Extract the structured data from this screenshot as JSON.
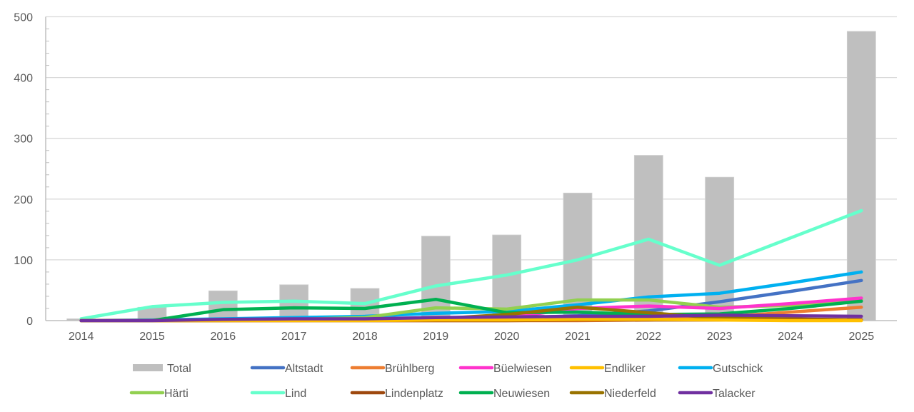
{
  "chart_data": {
    "type": "bar+line",
    "title": "",
    "xlabel": "",
    "ylabel": "",
    "ylim": [
      0,
      500
    ],
    "yticks": [
      0,
      100,
      200,
      300,
      400,
      500
    ],
    "y_minor_step": 20,
    "grid": true,
    "legend_position": "bottom",
    "categories": [
      "2014",
      "2015",
      "2016",
      "2017",
      "2018",
      "2019",
      "2020",
      "2021",
      "2022",
      "2023",
      "2024",
      "2025"
    ],
    "bar_series": {
      "name": "Total",
      "color": "#bfbfbf",
      "values": [
        3,
        22,
        49,
        59,
        53,
        139,
        141,
        210,
        272,
        236,
        null,
        476
      ]
    },
    "series": [
      {
        "name": "Altstadt",
        "color": "#4472c4",
        "values": [
          0,
          0,
          1,
          1,
          2,
          3,
          4,
          8,
          16,
          31,
          48,
          66
        ]
      },
      {
        "name": "Brühlberg",
        "color": "#ed7d31",
        "values": [
          0,
          0,
          0,
          0,
          0,
          0,
          0,
          0,
          1,
          6,
          14,
          22
        ]
      },
      {
        "name": "Büelwiesen",
        "color": "#ff33cc",
        "values": [
          0,
          0,
          0,
          0,
          1,
          2,
          5,
          20,
          24,
          20,
          28,
          37
        ]
      },
      {
        "name": "Endliker",
        "color": "#ffc000",
        "values": [
          0,
          0,
          0,
          0,
          0,
          1,
          1,
          2,
          2,
          1,
          0,
          0
        ]
      },
      {
        "name": "Gutschick",
        "color": "#00b0f0",
        "values": [
          0,
          1,
          3,
          5,
          7,
          12,
          15,
          26,
          39,
          45,
          62,
          80
        ]
      },
      {
        "name": "Härti",
        "color": "#92d050",
        "values": [
          0,
          0,
          1,
          2,
          5,
          21,
          19,
          34,
          34,
          22,
          25,
          35
        ]
      },
      {
        "name": "Lind",
        "color": "#66ffcc",
        "values": [
          3,
          23,
          30,
          32,
          28,
          57,
          75,
          100,
          134,
          91,
          136,
          181
        ]
      },
      {
        "name": "Lindenplatz",
        "color": "#9e480e",
        "values": [
          0,
          0,
          0,
          0,
          0,
          0,
          0,
          1,
          1,
          1,
          1,
          1
        ]
      },
      {
        "name": "Neuwiesen",
        "color": "#00b050",
        "values": [
          0,
          0,
          18,
          21,
          20,
          35,
          13,
          14,
          10,
          11,
          20,
          32
        ]
      },
      {
        "name": "Niederfeld",
        "color": "#997300",
        "values": [
          0,
          0,
          0,
          1,
          1,
          3,
          10,
          22,
          13,
          4,
          3,
          1
        ]
      },
      {
        "name": "Talacker",
        "color": "#7030a0",
        "values": [
          0,
          0,
          2,
          3,
          3,
          5,
          6,
          7,
          7,
          9,
          8,
          7
        ]
      }
    ],
    "legend": {
      "rows": [
        [
          "Total",
          "Altstadt",
          "Brühlberg",
          "Büelwiesen",
          "Endliker",
          "Gutschick"
        ],
        [
          "Härti",
          "Lind",
          "Lindenplatz",
          "Neuwiesen",
          "Niederfeld",
          "Talacker"
        ]
      ]
    },
    "colors": {
      "axis": "#bfbfbf",
      "grid": "#d9d9d9",
      "text": "#595959"
    }
  }
}
